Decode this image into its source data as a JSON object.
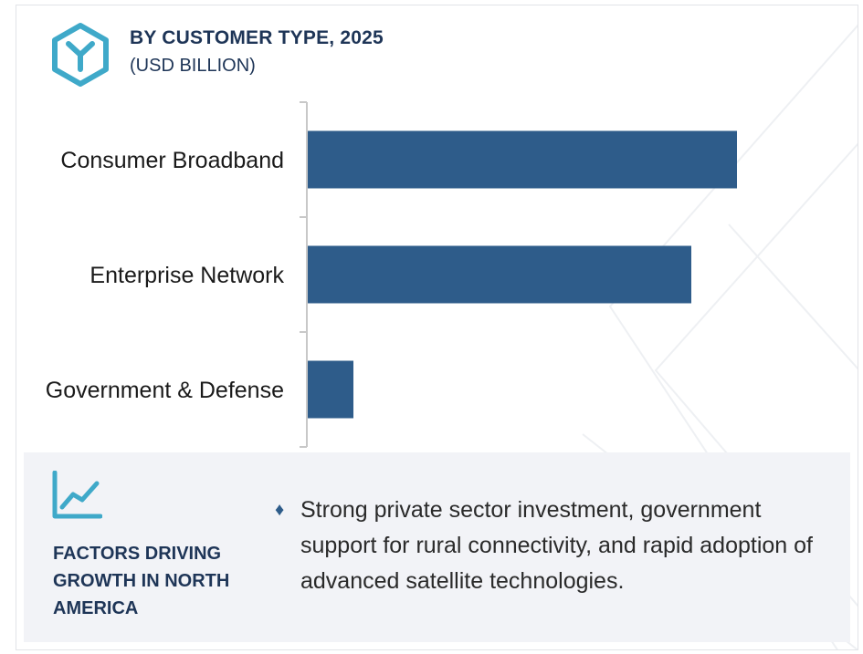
{
  "header": {
    "title": "BY CUSTOMER TYPE, 2025",
    "subtitle": "(USD BILLION)",
    "logo_icon": "hexagon-y-logo-icon"
  },
  "chart_data": {
    "type": "bar",
    "orientation": "horizontal",
    "title": "BY CUSTOMER TYPE, 2025",
    "subtitle": "(USD BILLION)",
    "categories": [
      "Consumer Broadband",
      "Enterprise Network",
      "Government & Defense"
    ],
    "values": [
      9.4,
      8.4,
      1.0
    ],
    "xlim": [
      0,
      11.5
    ],
    "grid": false,
    "legend": "none",
    "bar_color": "#2e5c8a"
  },
  "factors": {
    "icon": "trend-line-icon",
    "title": "FACTORS DRIVING GROWTH IN NORTH AMERICA",
    "bullets": [
      "Strong private sector investment, government support for rural connectivity, and rapid adoption of advanced satellite technologies."
    ]
  },
  "colors": {
    "accent": "#2e5c8a",
    "heading": "#1e3557",
    "logo": "#3fa9c9",
    "panel_bg": "#f2f3f7"
  }
}
